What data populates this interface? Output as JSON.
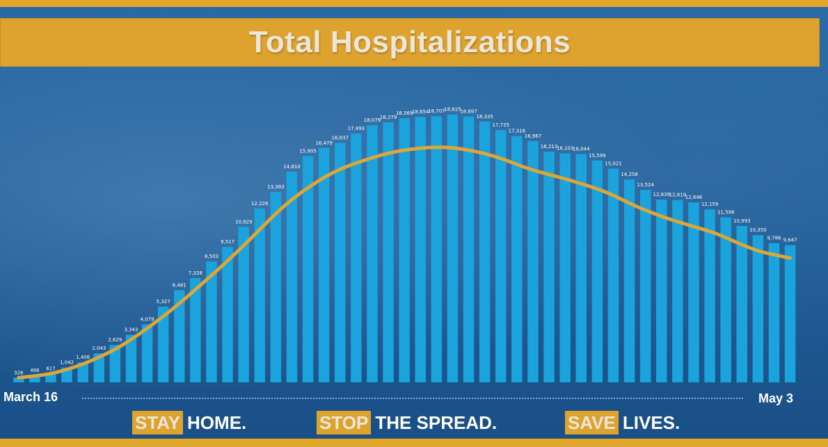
{
  "header": {
    "title": "Total Hospitalizations"
  },
  "axis": {
    "start_label": "March 16",
    "end_label": "May 3"
  },
  "slogans": [
    {
      "highlight": "STAY",
      "rest": "HOME."
    },
    {
      "highlight": "STOP",
      "rest": "THE SPREAD."
    },
    {
      "highlight": "SAVE",
      "rest": "LIVES."
    }
  ],
  "colors": {
    "accent": "#dea32e",
    "bar": "#1aa3dc",
    "background": "#1f5f9a",
    "trend": "#d9a73a"
  },
  "chart_data": {
    "type": "bar",
    "title": "Total Hospitalizations",
    "x_start": "March 16",
    "x_end": "May 3",
    "values": [
      326,
      496,
      617,
      1042,
      1406,
      2043,
      2629,
      3343,
      4079,
      5327,
      6481,
      7328,
      8503,
      9517,
      10929,
      12226,
      13383,
      14810,
      15905,
      16479,
      16837,
      17493,
      18079,
      18279,
      18569,
      18654,
      18707,
      18825,
      18697,
      18335,
      17735,
      17316,
      16967,
      16213,
      16103,
      16044,
      15599,
      15021,
      14258,
      13524,
      12839,
      12819,
      12646,
      12159,
      11598,
      10993,
      10350,
      9786,
      9647
    ],
    "labels": [
      "326",
      "496",
      "617",
      "1,042",
      "1,406",
      "2,043",
      "2,629",
      "3,343",
      "4,079",
      "5,327",
      "6,481",
      "7,328",
      "8,503",
      "9,517",
      "10,929",
      "12,226",
      "13,383",
      "14,810",
      "15,905",
      "16,479",
      "16,837",
      "17,493",
      "18,079",
      "18,279",
      "18,569",
      "18,654",
      "18,707",
      "18,825",
      "18,697",
      "18,335",
      "17,735",
      "17,316",
      "16,967",
      "16,213",
      "16,103",
      "16,044",
      "15,599",
      "15,021",
      "14,258",
      "13,524",
      "12,839",
      "12,819",
      "12,646",
      "12,159",
      "11,598",
      "10,993",
      "10,350",
      "9,786",
      "9,647"
    ],
    "trend_line": true,
    "ylim": [
      0,
      21500
    ]
  }
}
